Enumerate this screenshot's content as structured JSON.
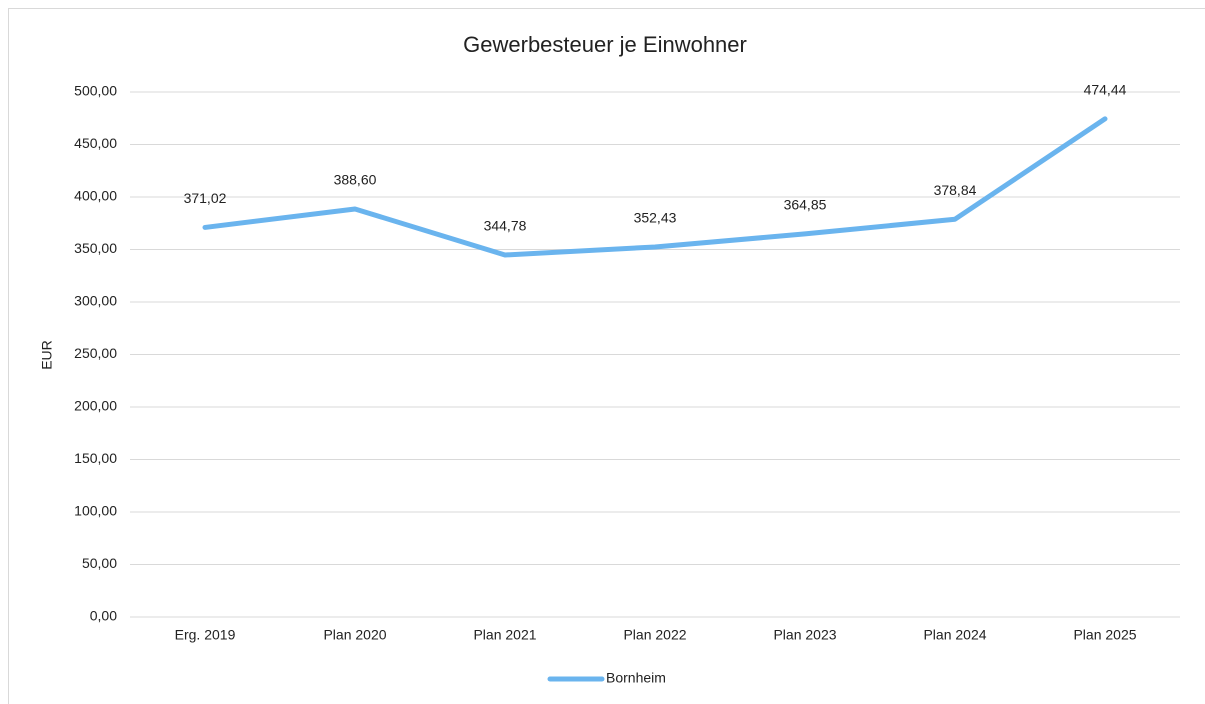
{
  "chart_data": {
    "type": "line",
    "title": "Gewerbesteuer je Einwohner",
    "y_label": "EUR",
    "categories": [
      "Erg. 2019",
      "Plan 2020",
      "Plan 2021",
      "Plan 2022",
      "Plan 2023",
      "Plan 2024",
      "Plan 2025"
    ],
    "series": [
      {
        "name": "Bornheim",
        "color": "#6ab4ee",
        "values": [
          371.02,
          388.6,
          344.78,
          352.43,
          364.85,
          378.84,
          474.44
        ],
        "value_labels": [
          "371,02",
          "388,60",
          "344,78",
          "352,43",
          "364,85",
          "378,84",
          "474,44"
        ]
      }
    ],
    "ylim": [
      0,
      500
    ],
    "yticks": [
      {
        "value": 0,
        "label": "0,00"
      },
      {
        "value": 50,
        "label": "50,00"
      },
      {
        "value": 100,
        "label": "100,00"
      },
      {
        "value": 150,
        "label": "150,00"
      },
      {
        "value": 200,
        "label": "200,00"
      },
      {
        "value": 250,
        "label": "250,00"
      },
      {
        "value": 300,
        "label": "300,00"
      },
      {
        "value": 350,
        "label": "350,00"
      },
      {
        "value": 400,
        "label": "400,00"
      },
      {
        "value": 450,
        "label": "450,00"
      },
      {
        "value": 500,
        "label": "500,00"
      }
    ],
    "grid": true,
    "legend": "bottom"
  }
}
